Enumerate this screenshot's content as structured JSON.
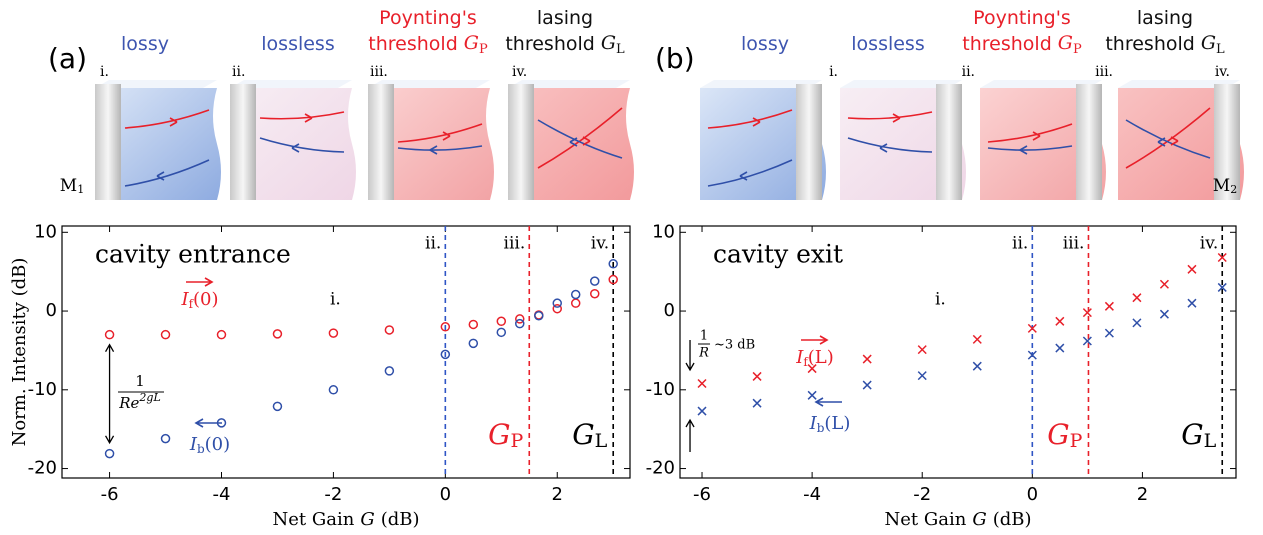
{
  "illustrations": [
    {
      "panel": "(a)",
      "mirror": {
        "symbol": "M",
        "subscript": "1"
      },
      "columns": [
        {
          "title": {
            "lines": [
              "lossy"
            ]
          },
          "roman": "i."
        },
        {
          "title": {
            "lines": [
              "lossless"
            ]
          },
          "roman": "ii."
        },
        {
          "title": {
            "lines": [
              "Poynting's",
              "threshold"
            ],
            "symbol": "G",
            "subscript": "P"
          },
          "roman": "iii."
        },
        {
          "title": {
            "lines": [
              "lasing",
              "threshold"
            ],
            "symbol": "G",
            "subscript": "L"
          },
          "roman": "iv."
        }
      ]
    },
    {
      "panel": "(b)",
      "mirror": {
        "symbol": "M",
        "subscript": "2"
      },
      "columns": [
        {
          "title": {
            "lines": [
              "lossy"
            ]
          },
          "roman": "i."
        },
        {
          "title": {
            "lines": [
              "lossless"
            ]
          },
          "roman": "ii."
        },
        {
          "title": {
            "lines": [
              "Poynting's",
              "threshold"
            ],
            "symbol": "G",
            "subscript": "P"
          },
          "roman": "iii."
        },
        {
          "title": {
            "lines": [
              "lasing",
              "threshold"
            ],
            "symbol": "G",
            "subscript": "L"
          },
          "roman": "iv."
        }
      ]
    }
  ],
  "chart_data": [
    {
      "type": "scatter",
      "panel_text": "cavity entrance",
      "xlabel": {
        "before": "Net Gain",
        "symbol": "G",
        "after": "(dB)"
      },
      "ylabel": "Norm. Intensity (dB)",
      "xlim": [
        -6.85,
        3.3
      ],
      "ylim": [
        -21.2,
        10.8
      ],
      "xticks": [
        -6,
        -4,
        -2,
        0,
        2
      ],
      "yticks": [
        10,
        0,
        -10,
        -20
      ],
      "x": [
        -6,
        -5,
        -4,
        -3,
        -2,
        -1,
        0,
        0.5,
        1,
        1.33,
        1.67,
        2,
        2.33,
        2.67,
        3
      ],
      "series": [
        {
          "label": {
            "symbol": "I",
            "subscript": "f",
            "arg": "(0)"
          },
          "color": "#e8202a",
          "marker": "circle",
          "values": [
            -3,
            -3,
            -3,
            -2.9,
            -2.8,
            -2.4,
            -2.0,
            -1.7,
            -1.3,
            -1.0,
            -0.5,
            0.3,
            1.0,
            2.2,
            4.0
          ]
        },
        {
          "label": {
            "symbol": "I",
            "subscript": "b",
            "arg": "(0)"
          },
          "color": "#2f4fa8",
          "marker": "circle",
          "values": [
            -18.1,
            -16.2,
            -14.2,
            -12.1,
            -10.0,
            -7.6,
            -5.5,
            -4.1,
            -2.7,
            -1.6,
            -0.6,
            1.0,
            2.1,
            3.8,
            6.0
          ]
        }
      ],
      "thresholds": [
        {
          "x": 0,
          "color": "#2f55c5",
          "label": "ii."
        },
        {
          "x": 1.5,
          "color": "#e8202a",
          "label": "iii.",
          "symbol": "G",
          "subscript": "P"
        },
        {
          "x": 3,
          "color": "#000000",
          "label": "iv.",
          "symbol": "G",
          "subscript": "L"
        }
      ],
      "annotations": [
        "i."
      ],
      "fraction": {
        "numerator": "1",
        "denominator": "Re",
        "superscript": "2gL"
      }
    },
    {
      "type": "scatter",
      "panel_text": "cavity exit",
      "xlabel": {
        "before": "Net Gain",
        "symbol": "G",
        "after": "(dB)"
      },
      "xlim": [
        -6.4,
        3.7
      ],
      "ylim": [
        -21.2,
        10.8
      ],
      "xticks": [
        -6,
        -4,
        -2,
        0,
        2
      ],
      "yticks": [
        10,
        0,
        -10,
        -20
      ],
      "x": [
        -6,
        -5,
        -4,
        -3,
        -2,
        -1,
        0,
        0.5,
        1,
        1.4,
        1.9,
        2.4,
        2.9,
        3.45
      ],
      "series": [
        {
          "label": {
            "symbol": "I",
            "subscript": "f",
            "arg": "(L)"
          },
          "color": "#e8202a",
          "marker": "cross",
          "values": [
            -9.2,
            -8.3,
            -7.3,
            -6.1,
            -4.9,
            -3.6,
            -2.2,
            -1.3,
            -0.2,
            0.6,
            1.7,
            3.4,
            5.3,
            6.8
          ]
        },
        {
          "label": {
            "symbol": "I",
            "subscript": "b",
            "arg": "(L)"
          },
          "color": "#2f4fa8",
          "marker": "cross",
          "values": [
            -12.7,
            -11.7,
            -10.7,
            -9.4,
            -8.2,
            -7.0,
            -5.6,
            -4.7,
            -3.8,
            -2.8,
            -1.5,
            -0.4,
            1.0,
            3.0
          ]
        }
      ],
      "thresholds": [
        {
          "x": 0,
          "color": "#2f55c5",
          "label": "ii."
        },
        {
          "x": 1.02,
          "color": "#e8202a",
          "label": "iii.",
          "symbol": "G",
          "subscript": "P"
        },
        {
          "x": 3.45,
          "color": "#000000",
          "label": "iv.",
          "symbol": "G",
          "subscript": "L"
        }
      ],
      "annotations": [
        "i."
      ],
      "fraction": {
        "numerator": "1",
        "denominator": "R",
        "note": "~3 dB"
      }
    }
  ]
}
